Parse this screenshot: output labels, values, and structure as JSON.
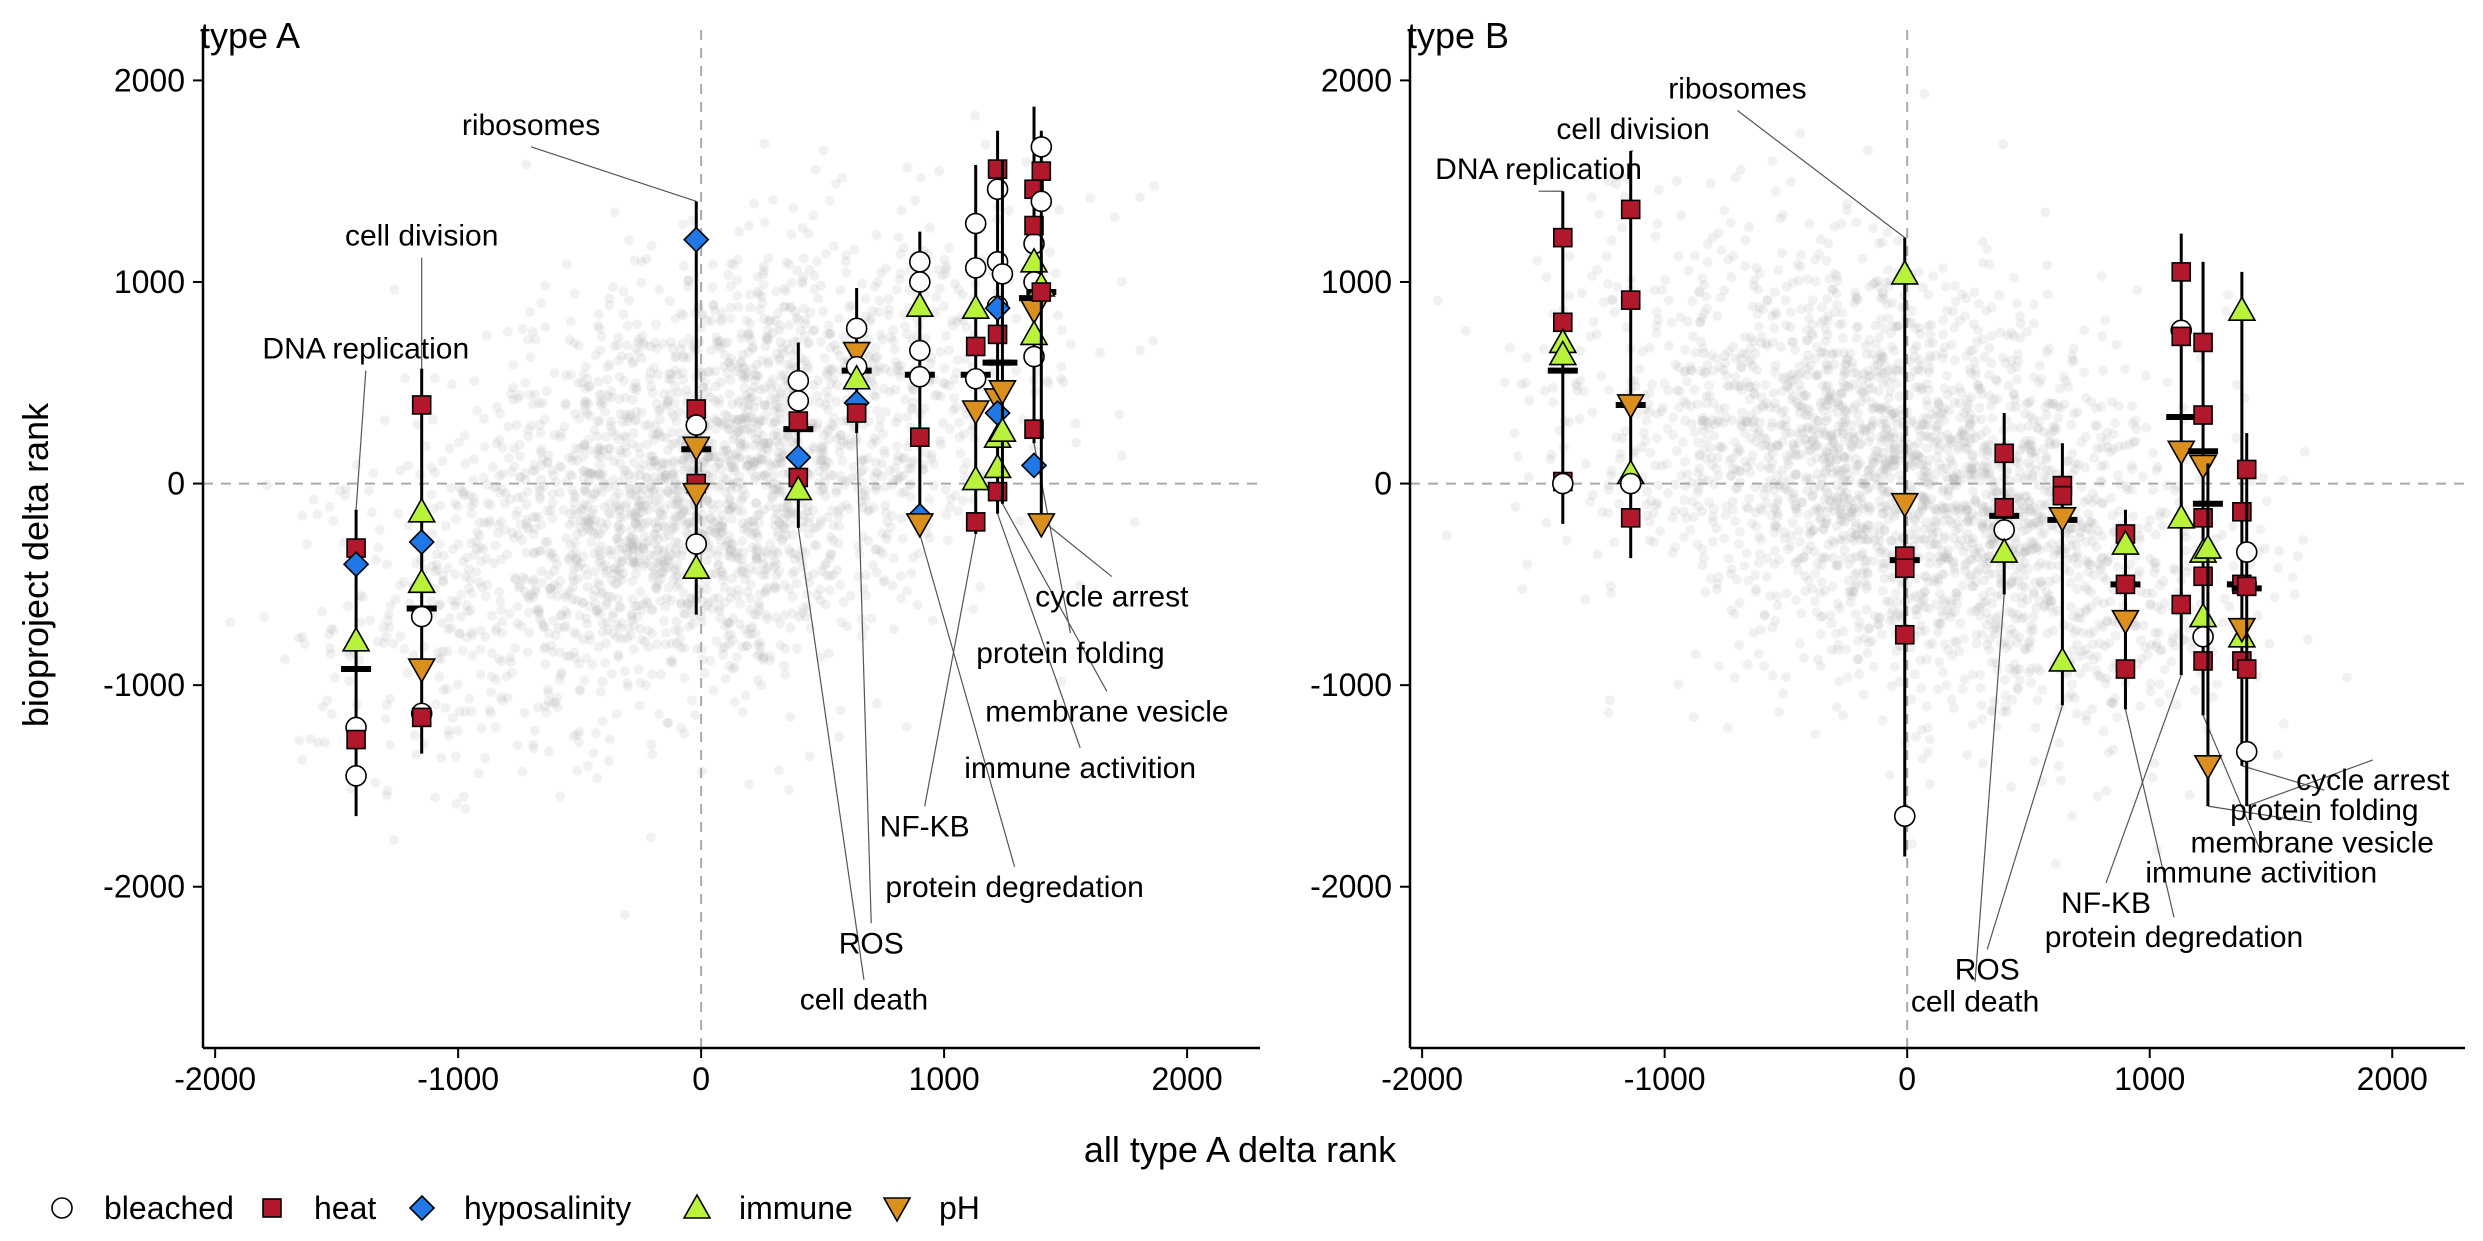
{
  "figure": {
    "xlabel": "all type A delta rank",
    "ylabel": "bioproject delta rank"
  },
  "legend": {
    "placement": "bottom-left",
    "items": [
      {
        "label": "bleached",
        "shape": "circle",
        "color": "#ffffff"
      },
      {
        "label": "heat",
        "shape": "square",
        "color": "#b2182b"
      },
      {
        "label": "hyposalinity",
        "shape": "diamond",
        "color": "#1f78e6"
      },
      {
        "label": "immune",
        "shape": "triangle-up",
        "color": "#b8f23a"
      },
      {
        "label": "pH",
        "shape": "triangle-down",
        "color": "#d9901f"
      }
    ]
  },
  "colors": {
    "bleached": "#ffffff",
    "heat": "#b2182b",
    "hyposalinity": "#1f78e6",
    "immune": "#b8f23a",
    "pH": "#d9901f",
    "background_points": "#b3b3b3"
  },
  "chart_data": [
    {
      "type": "scatter",
      "title": "type A",
      "xlim": [
        -2050,
        2300
      ],
      "ylim": [
        -2800,
        2250
      ],
      "xticks": [
        -2000,
        -1000,
        0,
        1000,
        2000
      ],
      "yticks": [
        -2000,
        -1000,
        0,
        1000,
        2000
      ],
      "grid": false,
      "reference_lines": {
        "x": 0,
        "y": 0
      },
      "background_trend": "positive",
      "groups": [
        {
          "label": "DNA replication",
          "x": -1420,
          "mean": -920,
          "range": [
            -1650,
            -130
          ],
          "label_pos": [
            -1380,
            620
          ],
          "points": [
            {
              "cond": "heat",
              "y": -320
            },
            {
              "cond": "hyposalinity",
              "y": -400
            },
            {
              "cond": "immune",
              "y": -780
            },
            {
              "cond": "bleached",
              "y": -1210
            },
            {
              "cond": "heat",
              "y": -1270
            },
            {
              "cond": "bleached",
              "y": -1450
            }
          ]
        },
        {
          "label": "cell division",
          "x": -1150,
          "mean": -620,
          "range": [
            -1340,
            570
          ],
          "label_pos": [
            -1150,
            1180
          ],
          "points": [
            {
              "cond": "heat",
              "y": 390
            },
            {
              "cond": "immune",
              "y": -140
            },
            {
              "cond": "hyposalinity",
              "y": -290
            },
            {
              "cond": "immune",
              "y": -490
            },
            {
              "cond": "bleached",
              "y": -660
            },
            {
              "cond": "pH",
              "y": -920
            },
            {
              "cond": "bleached",
              "y": -1140
            },
            {
              "cond": "heat",
              "y": -1160
            }
          ]
        },
        {
          "label": "ribosomes",
          "x": -20,
          "mean": 170,
          "range": [
            -650,
            1400
          ],
          "label_pos": [
            -700,
            1730
          ],
          "points": [
            {
              "cond": "hyposalinity",
              "y": 1210
            },
            {
              "cond": "heat",
              "y": 370
            },
            {
              "cond": "bleached",
              "y": 290
            },
            {
              "cond": "pH",
              "y": 180
            },
            {
              "cond": "heat",
              "y": 0
            },
            {
              "cond": "pH",
              "y": -50
            },
            {
              "cond": "bleached",
              "y": -300
            },
            {
              "cond": "immune",
              "y": -420
            }
          ]
        },
        {
          "label": "cell death",
          "x": 400,
          "mean": 270,
          "range": [
            -220,
            700
          ],
          "label_pos": [
            670,
            -2610
          ],
          "points": [
            {
              "cond": "bleached",
              "y": 510
            },
            {
              "cond": "bleached",
              "y": 410
            },
            {
              "cond": "heat",
              "y": 310
            },
            {
              "cond": "hyposalinity",
              "y": 130
            },
            {
              "cond": "heat",
              "y": 30
            },
            {
              "cond": "immune",
              "y": -30
            }
          ]
        },
        {
          "label": "ROS",
          "x": 640,
          "mean": 560,
          "range": [
            250,
            970
          ],
          "label_pos": [
            700,
            -2330
          ],
          "points": [
            {
              "cond": "bleached",
              "y": 770
            },
            {
              "cond": "pH",
              "y": 650
            },
            {
              "cond": "bleached",
              "y": 580
            },
            {
              "cond": "immune",
              "y": 520
            },
            {
              "cond": "hyposalinity",
              "y": 400
            },
            {
              "cond": "heat",
              "y": 350
            }
          ]
        },
        {
          "label": "protein degredation",
          "x": 900,
          "mean": 540,
          "range": [
            -250,
            1250
          ],
          "label_pos": [
            1290,
            -2050
          ],
          "points": [
            {
              "cond": "bleached",
              "y": 1100
            },
            {
              "cond": "bleached",
              "y": 1000
            },
            {
              "cond": "immune",
              "y": 880
            },
            {
              "cond": "bleached",
              "y": 660
            },
            {
              "cond": "bleached",
              "y": 530
            },
            {
              "cond": "heat",
              "y": 230
            },
            {
              "cond": "hyposalinity",
              "y": -160
            },
            {
              "cond": "pH",
              "y": -200
            }
          ]
        },
        {
          "label": "NF-KB",
          "x": 1130,
          "mean": 540,
          "range": [
            -250,
            1580
          ],
          "label_pos": [
            920,
            -1750
          ],
          "points": [
            {
              "cond": "bleached",
              "y": 1290
            },
            {
              "cond": "bleached",
              "y": 1070
            },
            {
              "cond": "immune",
              "y": 870
            },
            {
              "cond": "heat",
              "y": 680
            },
            {
              "cond": "bleached",
              "y": 520
            },
            {
              "cond": "pH",
              "y": 360
            },
            {
              "cond": "immune",
              "y": 20
            },
            {
              "cond": "heat",
              "y": -190
            }
          ]
        },
        {
          "label": "immune activition",
          "x": 1220,
          "mean": 600,
          "range": [
            -150,
            1750
          ],
          "label_pos": [
            1560,
            -1460
          ],
          "points": [
            {
              "cond": "bleached",
              "y": 1460
            },
            {
              "cond": "heat",
              "y": 1560
            },
            {
              "cond": "bleached",
              "y": 1100
            },
            {
              "cond": "bleached",
              "y": 880
            },
            {
              "cond": "hyposalinity",
              "y": 870
            },
            {
              "cond": "heat",
              "y": 740
            },
            {
              "cond": "pH",
              "y": 420
            },
            {
              "cond": "hyposalinity",
              "y": 350
            },
            {
              "cond": "immune",
              "y": 230
            },
            {
              "cond": "immune",
              "y": 80
            },
            {
              "cond": "heat",
              "y": -40
            }
          ]
        },
        {
          "label": "membrane vesicle",
          "x": 1240,
          "mean": 600,
          "range": [
            -100,
            1600
          ],
          "label_pos": [
            1670,
            -1180
          ],
          "points": [
            {
              "cond": "bleached",
              "y": 1040
            },
            {
              "cond": "pH",
              "y": 460
            },
            {
              "cond": "immune",
              "y": 260
            }
          ]
        },
        {
          "label": "protein folding",
          "x": 1370,
          "mean": 920,
          "range": [
            200,
            1870
          ],
          "label_pos": [
            1520,
            -890
          ],
          "points": [
            {
              "cond": "heat",
              "y": 1460
            },
            {
              "cond": "bleached",
              "y": 1190
            },
            {
              "cond": "immune",
              "y": 1100
            },
            {
              "cond": "bleached",
              "y": 1000
            },
            {
              "cond": "pH",
              "y": 860
            },
            {
              "cond": "immune",
              "y": 740
            },
            {
              "cond": "bleached",
              "y": 630
            },
            {
              "cond": "heat",
              "y": 1280
            },
            {
              "cond": "heat",
              "y": 270
            },
            {
              "cond": "hyposalinity",
              "y": 90
            }
          ]
        },
        {
          "label": "cycle arrest",
          "x": 1400,
          "mean": 950,
          "range": [
            -180,
            1750
          ],
          "label_pos": [
            1690,
            -610
          ],
          "points": [
            {
              "cond": "bleached",
              "y": 1670
            },
            {
              "cond": "heat",
              "y": 1550
            },
            {
              "cond": "bleached",
              "y": 1400
            },
            {
              "cond": "immune",
              "y": 980
            },
            {
              "cond": "heat",
              "y": 950
            },
            {
              "cond": "pH",
              "y": -200
            }
          ]
        }
      ]
    },
    {
      "type": "scatter",
      "title": "type B",
      "xlim": [
        -2050,
        2300
      ],
      "ylim": [
        -2800,
        2250
      ],
      "xticks": [
        -2000,
        -1000,
        0,
        1000,
        2000
      ],
      "yticks": [
        -2000,
        -1000,
        0,
        1000,
        2000
      ],
      "grid": false,
      "reference_lines": {
        "x": 0,
        "y": 0
      },
      "background_trend": "negative",
      "groups": [
        {
          "label": "DNA replication",
          "x": -1420,
          "mean": 560,
          "range": [
            -200,
            1450
          ],
          "label_pos": [
            -1520,
            1510
          ],
          "points": [
            {
              "cond": "heat",
              "y": 1220
            },
            {
              "cond": "heat",
              "y": 800
            },
            {
              "cond": "immune",
              "y": 700
            },
            {
              "cond": "immune",
              "y": 640
            },
            {
              "cond": "heat",
              "y": 10
            },
            {
              "cond": "bleached",
              "y": 0
            }
          ]
        },
        {
          "label": "cell division",
          "x": -1140,
          "mean": 390,
          "range": [
            -370,
            1650
          ],
          "label_pos": [
            -1130,
            1710
          ],
          "points": [
            {
              "cond": "heat",
              "y": 1360
            },
            {
              "cond": "heat",
              "y": 910
            },
            {
              "cond": "pH",
              "y": 390
            },
            {
              "cond": "immune",
              "y": 50
            },
            {
              "cond": "bleached",
              "y": 0
            },
            {
              "cond": "heat",
              "y": -170
            }
          ]
        },
        {
          "label": "ribosomes",
          "x": -10,
          "mean": -380,
          "range": [
            -1850,
            1220
          ],
          "label_pos": [
            -700,
            1910
          ],
          "points": [
            {
              "cond": "immune",
              "y": 1040
            },
            {
              "cond": "pH",
              "y": -100
            },
            {
              "cond": "heat",
              "y": -360
            },
            {
              "cond": "heat",
              "y": -420
            },
            {
              "cond": "heat",
              "y": -750
            },
            {
              "cond": "bleached",
              "y": -1650
            }
          ]
        },
        {
          "label": "cell death",
          "x": 400,
          "mean": -160,
          "range": [
            -550,
            350
          ],
          "label_pos": [
            280,
            -2620
          ],
          "points": [
            {
              "cond": "heat",
              "y": 150
            },
            {
              "cond": "heat",
              "y": -120
            },
            {
              "cond": "bleached",
              "y": -230
            },
            {
              "cond": "immune",
              "y": -340
            }
          ]
        },
        {
          "label": "ROS",
          "x": 640,
          "mean": -180,
          "range": [
            -1100,
            200
          ],
          "label_pos": [
            330,
            -2460
          ],
          "points": [
            {
              "cond": "heat",
              "y": -10
            },
            {
              "cond": "heat",
              "y": -60
            },
            {
              "cond": "pH",
              "y": -170
            },
            {
              "cond": "immune",
              "y": -880
            }
          ]
        },
        {
          "label": "protein degredation",
          "x": 900,
          "mean": -500,
          "range": [
            -1120,
            -130
          ],
          "label_pos": [
            1100,
            -2300
          ],
          "points": [
            {
              "cond": "heat",
              "y": -250
            },
            {
              "cond": "immune",
              "y": -300
            },
            {
              "cond": "heat",
              "y": -500
            },
            {
              "cond": "pH",
              "y": -680
            },
            {
              "cond": "heat",
              "y": -920
            }
          ]
        },
        {
          "label": "NF-KB",
          "x": 1130,
          "mean": 330,
          "range": [
            -950,
            1240
          ],
          "label_pos": [
            820,
            -2130
          ],
          "points": [
            {
              "cond": "heat",
              "y": 1050
            },
            {
              "cond": "bleached",
              "y": 760
            },
            {
              "cond": "heat",
              "y": 730
            },
            {
              "cond": "pH",
              "y": 160
            },
            {
              "cond": "immune",
              "y": -170
            },
            {
              "cond": "heat",
              "y": -600
            }
          ]
        },
        {
          "label": "immune activition",
          "x": 1220,
          "mean": 160,
          "range": [
            -1150,
            1100
          ],
          "label_pos": [
            1460,
            -1980
          ],
          "points": [
            {
              "cond": "heat",
              "y": 700
            },
            {
              "cond": "heat",
              "y": 340
            },
            {
              "cond": "pH",
              "y": 90
            },
            {
              "cond": "heat",
              "y": -170
            },
            {
              "cond": "immune",
              "y": -340
            },
            {
              "cond": "heat",
              "y": -460
            },
            {
              "cond": "immune",
              "y": -660
            },
            {
              "cond": "bleached",
              "y": -760
            },
            {
              "cond": "heat",
              "y": -880
            }
          ]
        },
        {
          "label": "membrane vesicle",
          "x": 1240,
          "mean": -100,
          "range": [
            -1600,
            100
          ],
          "label_pos": [
            1670,
            -1830
          ],
          "points": [
            {
              "cond": "immune",
              "y": -320
            },
            {
              "cond": "pH",
              "y": -1400
            }
          ]
        },
        {
          "label": "protein folding",
          "x": 1380,
          "mean": -500,
          "range": [
            -1400,
            1050
          ],
          "label_pos": [
            1720,
            -1670
          ],
          "points": [
            {
              "cond": "immune",
              "y": 860
            },
            {
              "cond": "heat",
              "y": -140
            },
            {
              "cond": "heat",
              "y": -500
            },
            {
              "cond": "immune",
              "y": -760
            },
            {
              "cond": "pH",
              "y": -720
            },
            {
              "cond": "heat",
              "y": -880
            }
          ]
        },
        {
          "label": "cycle arrest",
          "x": 1400,
          "mean": -520,
          "range": [
            -1600,
            250
          ],
          "label_pos": [
            1920,
            -1520
          ],
          "points": [
            {
              "cond": "heat",
              "y": 70
            },
            {
              "cond": "bleached",
              "y": -340
            },
            {
              "cond": "heat",
              "y": -510
            },
            {
              "cond": "heat",
              "y": -920
            },
            {
              "cond": "bleached",
              "y": -1330
            }
          ]
        }
      ]
    }
  ]
}
